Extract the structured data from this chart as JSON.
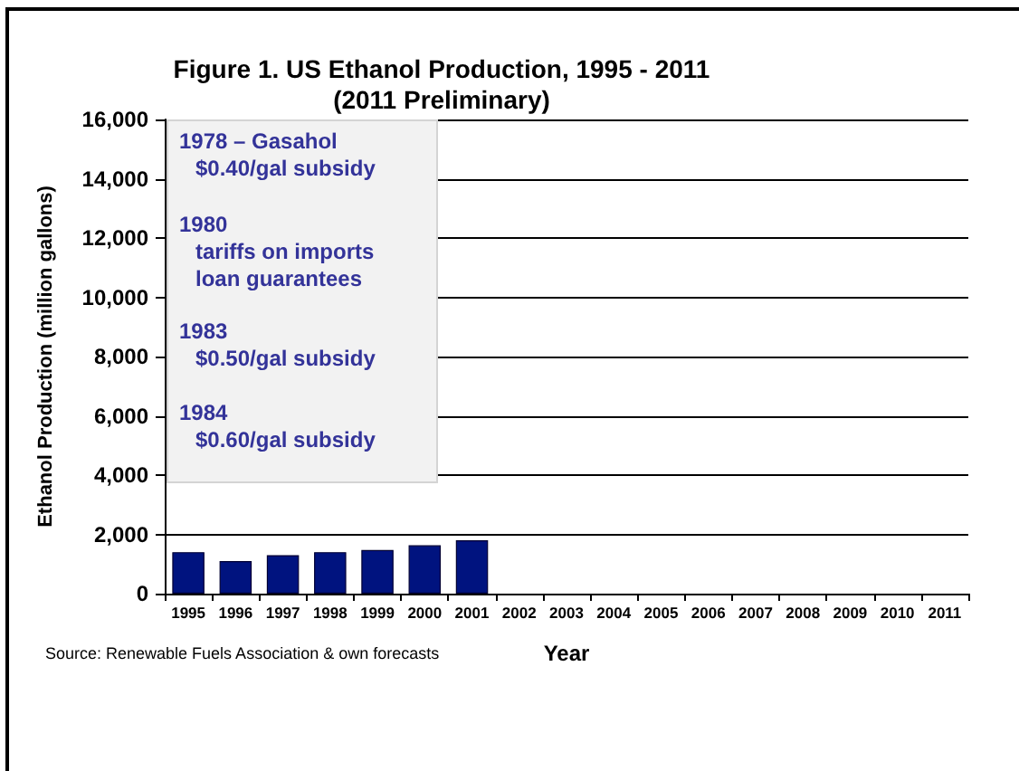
{
  "chart_data": {
    "type": "bar",
    "title": "Figure 1. US Ethanol Production, 1995 - 2011",
    "subtitle": "(2011 Preliminary)",
    "xlabel": "Year",
    "ylabel": "Ethanol Production (million gallons)",
    "categories": [
      "1995",
      "1996",
      "1997",
      "1998",
      "1999",
      "2000",
      "2001",
      "2002",
      "2003",
      "2004",
      "2005",
      "2006",
      "2007",
      "2008",
      "2009",
      "2010",
      "2011"
    ],
    "values": [
      1400,
      1100,
      1300,
      1400,
      1470,
      1630,
      1800,
      null,
      null,
      null,
      null,
      null,
      null,
      null,
      null,
      null,
      null
    ],
    "color": "#00137f",
    "ylim": [
      0,
      16000
    ],
    "yticks": [
      {
        "value": 0,
        "label": "0"
      },
      {
        "value": 2000,
        "label": "2,000"
      },
      {
        "value": 4000,
        "label": "4,000"
      },
      {
        "value": 6000,
        "label": "6,000"
      },
      {
        "value": 8000,
        "label": "8,000"
      },
      {
        "value": 10000,
        "label": "10,000"
      },
      {
        "value": 12000,
        "label": "12,000"
      },
      {
        "value": 14000,
        "label": "14,000"
      },
      {
        "value": 16000,
        "label": "16,000"
      }
    ],
    "grid": "y",
    "annotations": [
      "1978 – Gasahol\n$0.40/gal subsidy",
      "1980\ntariffs on imports\nloan guarantees",
      "1983\n$0.50/gal subsidy",
      "1984\n$0.60/gal subsidy",
      "Source: Renewable Fuels Association & own forecasts"
    ]
  }
}
